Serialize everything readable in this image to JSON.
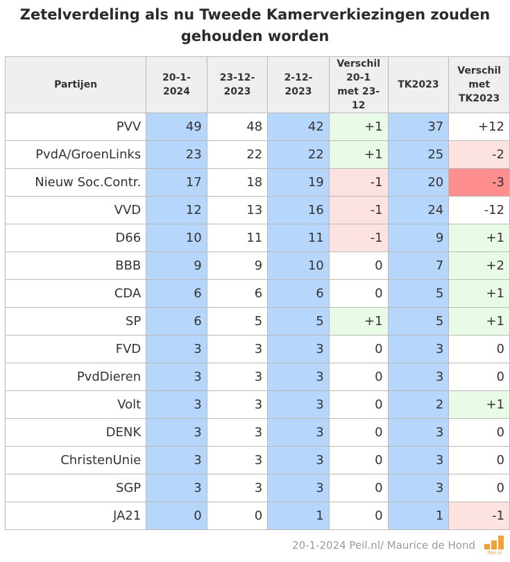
{
  "title": "Zetelverdeling als nu Tweede Kamerverkiezingen zouden gehouden worden",
  "footer": "20-1-2024 Peil.nl/ Maurice de Hond",
  "logo_text": "Peil.nl",
  "colors": {
    "blue": "#b6d6fc",
    "positive": "#e9fbe6",
    "negative": "#fde2e2",
    "strong_negative": "#ff8e8e",
    "logo": "#f0a23a"
  },
  "chart_data": {
    "type": "table",
    "columns": [
      "Partijen",
      "20-1-2024",
      "23-12-2023",
      "2-12-2023",
      "Verschil 20-1 met 23-12",
      "TK2023",
      "Verschil met TK2023"
    ],
    "rows": [
      {
        "party": "PVV",
        "d20_1_2024": 49,
        "d23_12_2023": 48,
        "d2_12_2023": 42,
        "diff_prev": "+1",
        "tk2023": 37,
        "diff_tk": "+12"
      },
      {
        "party": "PvdA/GroenLinks",
        "d20_1_2024": 23,
        "d23_12_2023": 22,
        "d2_12_2023": 22,
        "diff_prev": "+1",
        "tk2023": 25,
        "diff_tk": "-2"
      },
      {
        "party": "Nieuw Soc.Contr.",
        "d20_1_2024": 17,
        "d23_12_2023": 18,
        "d2_12_2023": 19,
        "diff_prev": "-1",
        "tk2023": 20,
        "diff_tk": "-3"
      },
      {
        "party": "VVD",
        "d20_1_2024": 12,
        "d23_12_2023": 13,
        "d2_12_2023": 16,
        "diff_prev": "-1",
        "tk2023": 24,
        "diff_tk": "-12"
      },
      {
        "party": "D66",
        "d20_1_2024": 10,
        "d23_12_2023": 11,
        "d2_12_2023": 11,
        "diff_prev": "-1",
        "tk2023": 9,
        "diff_tk": "+1"
      },
      {
        "party": "BBB",
        "d20_1_2024": 9,
        "d23_12_2023": 9,
        "d2_12_2023": 10,
        "diff_prev": "0",
        "tk2023": 7,
        "diff_tk": "+2"
      },
      {
        "party": "CDA",
        "d20_1_2024": 6,
        "d23_12_2023": 6,
        "d2_12_2023": 6,
        "diff_prev": "0",
        "tk2023": 5,
        "diff_tk": "+1"
      },
      {
        "party": "SP",
        "d20_1_2024": 6,
        "d23_12_2023": 5,
        "d2_12_2023": 5,
        "diff_prev": "+1",
        "tk2023": 5,
        "diff_tk": "+1"
      },
      {
        "party": "FVD",
        "d20_1_2024": 3,
        "d23_12_2023": 3,
        "d2_12_2023": 3,
        "diff_prev": "0",
        "tk2023": 3,
        "diff_tk": "0"
      },
      {
        "party": "PvdDieren",
        "d20_1_2024": 3,
        "d23_12_2023": 3,
        "d2_12_2023": 3,
        "diff_prev": "0",
        "tk2023": 3,
        "diff_tk": "0"
      },
      {
        "party": "Volt",
        "d20_1_2024": 3,
        "d23_12_2023": 3,
        "d2_12_2023": 3,
        "diff_prev": "0",
        "tk2023": 2,
        "diff_tk": "+1"
      },
      {
        "party": "DENK",
        "d20_1_2024": 3,
        "d23_12_2023": 3,
        "d2_12_2023": 3,
        "diff_prev": "0",
        "tk2023": 3,
        "diff_tk": "0"
      },
      {
        "party": "ChristenUnie",
        "d20_1_2024": 3,
        "d23_12_2023": 3,
        "d2_12_2023": 3,
        "diff_prev": "0",
        "tk2023": 3,
        "diff_tk": "0"
      },
      {
        "party": "SGP",
        "d20_1_2024": 3,
        "d23_12_2023": 3,
        "d2_12_2023": 3,
        "diff_prev": "0",
        "tk2023": 3,
        "diff_tk": "0"
      },
      {
        "party": "JA21",
        "d20_1_2024": 0,
        "d23_12_2023": 0,
        "d2_12_2023": 1,
        "diff_prev": "0",
        "tk2023": 1,
        "diff_tk": "-1"
      }
    ]
  }
}
